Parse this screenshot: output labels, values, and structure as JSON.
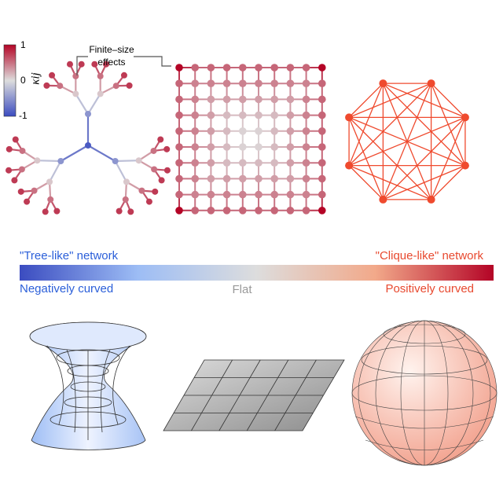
{
  "colorbar": {
    "label": "κij",
    "ticks": [
      "1",
      "0",
      "-1"
    ]
  },
  "annotation": {
    "lines": [
      "Finite–size",
      "effects"
    ]
  },
  "scale": {
    "left_top": "\"Tree-like\" network",
    "right_top": "\"Clique-like\" network",
    "left_bottom": "Negatively curved",
    "middle_bottom": "Flat",
    "right_bottom": "Positively curved"
  }
}
